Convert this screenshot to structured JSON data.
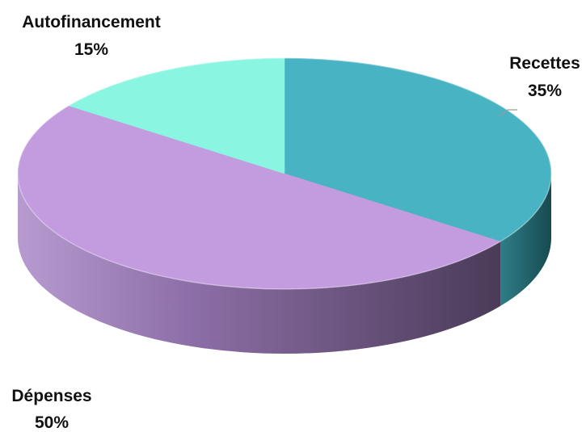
{
  "chart_data": {
    "type": "pie",
    "style": "3d",
    "start_angle_deg": 90,
    "direction": "clockwise",
    "slices": [
      {
        "name": "Recettes",
        "value": 35,
        "label": "35%",
        "color": "#48B3C2",
        "side_color": "#1F5E66"
      },
      {
        "name": "Dépenses",
        "value": 50,
        "label": "50%",
        "color": "#C39BDF",
        "side_color": "#6F5882"
      },
      {
        "name": "Autofinancement",
        "value": 15,
        "label": "15%",
        "color": "#8AF5E0",
        "side_color": "#3F8A7E"
      }
    ]
  }
}
